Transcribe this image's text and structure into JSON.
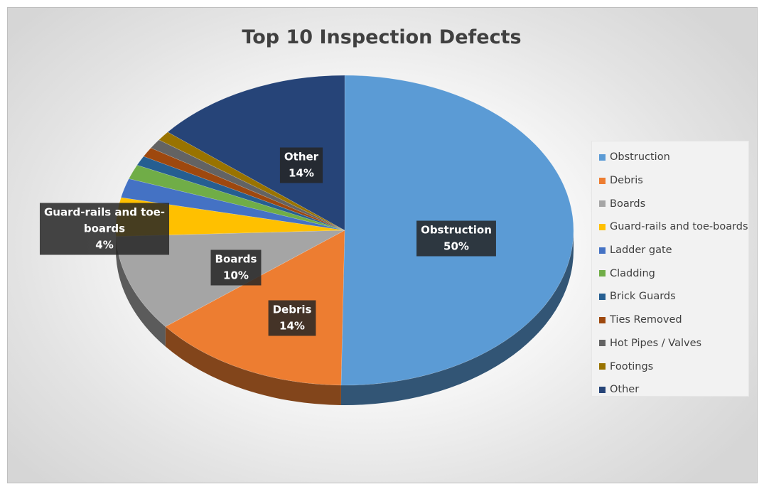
{
  "chart_data": {
    "type": "pie",
    "title": "Top 10 Inspection Defects",
    "categories": [
      "Obstruction",
      "Debris",
      "Boards",
      "Guard-rails and toe-boards",
      "Ladder gate",
      "Cladding",
      "Brick Guards",
      "Ties Removed",
      "Hot Pipes / Valves",
      "Footings",
      "Other"
    ],
    "values": [
      50,
      14,
      10,
      4,
      2,
      1.5,
      1,
      1,
      1,
      1,
      14
    ],
    "colors": [
      "#5b9bd5",
      "#ed7d31",
      "#a5a5a5",
      "#ffc000",
      "#4472c4",
      "#70ad47",
      "#255e91",
      "#9e480e",
      "#636363",
      "#997300",
      "#264478"
    ],
    "data_labels": [
      {
        "category": "Obstruction",
        "label": "Obstruction",
        "value_text": "50%"
      },
      {
        "category": "Debris",
        "label": "Debris",
        "value_text": "14%"
      },
      {
        "category": "Boards",
        "label": "Boards",
        "value_text": "10%"
      },
      {
        "category": "Guard-rails and toe-boards",
        "label": "Guard-rails and toe-boards",
        "value_text": "4%"
      },
      {
        "category": "Other",
        "label": "Other",
        "value_text": "14%"
      }
    ],
    "legend_position": "right",
    "style": "3d-pie"
  }
}
